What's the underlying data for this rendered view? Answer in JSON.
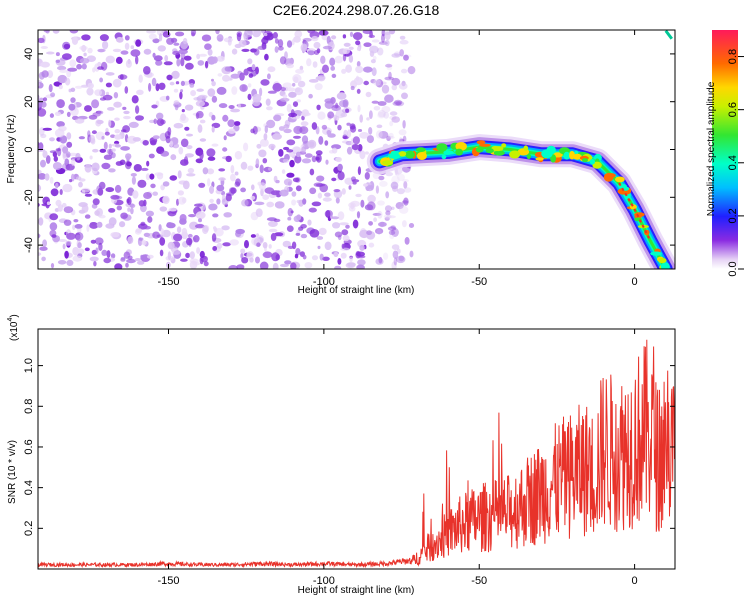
{
  "title": "C2E6.2024.298.07.26.G18",
  "chart_data": [
    {
      "type": "heatmap",
      "xlabel": "Height of straight line (km)",
      "ylabel": "Frequency (Hz)",
      "xlim": [
        -192,
        13
      ],
      "ylim": [
        -50,
        50
      ],
      "xticks": [
        -150,
        -100,
        -50,
        0
      ],
      "yticks": [
        -40,
        -20,
        0,
        20,
        40
      ],
      "colorbar": {
        "label": "Normalized spectral amplitude",
        "range": [
          0,
          0.9
        ],
        "ticks": [
          0.0,
          0.2,
          0.4,
          0.6,
          0.8
        ]
      },
      "features": {
        "noise_region_x": [
          -192,
          -73
        ],
        "signal_band": [
          {
            "x": -82,
            "y": -5
          },
          {
            "x": -75,
            "y": -2
          },
          {
            "x": -60,
            "y": -1
          },
          {
            "x": -50,
            "y": 1
          },
          {
            "x": -40,
            "y": 0
          },
          {
            "x": -30,
            "y": -2
          },
          {
            "x": -20,
            "y": -2
          },
          {
            "x": -12,
            "y": -5
          },
          {
            "x": -5,
            "y": -14
          },
          {
            "x": 0,
            "y": -25
          },
          {
            "x": 5,
            "y": -38
          },
          {
            "x": 10,
            "y": -50
          }
        ],
        "top_right_streak": {
          "x": 11,
          "y": 48
        }
      }
    },
    {
      "type": "line",
      "xlabel": "Height of straight line (km)",
      "ylabel": "SNR (10 * v/v)",
      "yscale_label": "(x10",
      "yscale_exp": "4",
      "yscale_close": ")",
      "xlim": [
        -192,
        13
      ],
      "ylim": [
        0,
        1.18
      ],
      "xticks": [
        -150,
        -100,
        -50,
        0
      ],
      "yticks": [
        0.2,
        0.4,
        0.6,
        0.8,
        1.0
      ],
      "series": [
        {
          "color": "#e8322a",
          "x": [
            -192,
            -180,
            -170,
            -160,
            -150,
            -140,
            -130,
            -120,
            -110,
            -100,
            -90,
            -80,
            -72,
            -68,
            -64,
            -60,
            -56,
            -52,
            -48,
            -44,
            -40,
            -36,
            -32,
            -28,
            -24,
            -20,
            -16,
            -13,
            -10,
            -6,
            -3,
            0,
            3,
            6,
            8,
            10,
            12,
            13
          ],
          "y": [
            0.02,
            0.02,
            0.02,
            0.02,
            0.025,
            0.02,
            0.02,
            0.025,
            0.02,
            0.025,
            0.02,
            0.025,
            0.04,
            0.1,
            0.16,
            0.22,
            0.27,
            0.3,
            0.32,
            0.33,
            0.35,
            0.4,
            0.45,
            0.5,
            0.55,
            0.58,
            0.62,
            0.58,
            0.75,
            0.7,
            0.74,
            0.78,
            0.83,
            0.86,
            0.6,
            0.86,
            0.72,
            0.7
          ]
        }
      ]
    }
  ]
}
